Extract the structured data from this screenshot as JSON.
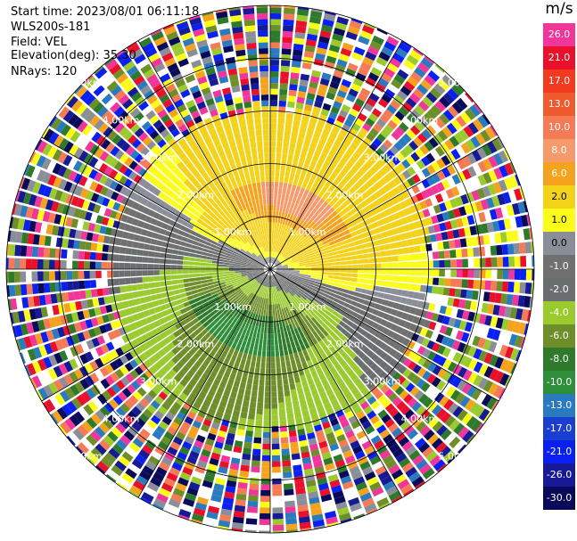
{
  "header": {
    "start_time": "Start time: 2023/08/01 06:11:18",
    "instrument": "WLS200s-181",
    "field": "Field: VEL",
    "elevation": "Elevation(deg): 35.30",
    "nrays": "NRays: 120"
  },
  "chart_data": {
    "type": "heatmap",
    "projection": "polar-ppi",
    "nrays": 120,
    "max_range_km": 5.0,
    "range_rings_km": [
      1,
      2,
      3,
      4,
      5
    ],
    "ring_label_unit": "km",
    "ring_labels": [
      "1.00km",
      "2.00km",
      "3.00km",
      "4.00km",
      "5.00km"
    ],
    "spokes_deg": [
      0,
      30,
      60,
      90,
      120,
      150,
      180,
      210,
      240,
      270,
      300,
      330
    ],
    "valid_range_km": 3.0,
    "noise_beyond_km": 3.0,
    "velocity_field_summary": {
      "north_half": "positive velocities 2 to 17 m/s, maximum ~10-13 m/s within 1.5 km toward NNE",
      "south_half": "negative velocities -2 to -10 m/s, minimum ~-10 m/s near 1 km toward SSW",
      "near_zero_band": "0 to -1 m/s along WNW-ESE axis"
    },
    "colorbar": {
      "unit": "m/s",
      "labels": [
        "26.0",
        "21.0",
        "17.0",
        "13.0",
        "10.0",
        "8.0",
        "6.0",
        "2.0",
        "1.0",
        "0.0",
        "-1.0",
        "-2.0",
        "-4.0",
        "-6.0",
        "-8.0",
        "-10.0",
        "-13.0",
        "-17.0",
        "-21.0",
        "-26.0",
        "-30.0"
      ],
      "colors": [
        "#f0369a",
        "#e8102a",
        "#f23b1e",
        "#ef5a2e",
        "#f57a56",
        "#f69a6c",
        "#f5a31e",
        "#f4d21a",
        "#fbfc1a",
        "#8a8e98",
        "#707070",
        "#6a6e6e",
        "#9aca2e",
        "#6e8e2a",
        "#2e7a2a",
        "#2e8e3a",
        "#2a7ac0",
        "#1a3ed0",
        "#0a20f0",
        "#161a96",
        "#0a0a5a"
      ]
    }
  }
}
